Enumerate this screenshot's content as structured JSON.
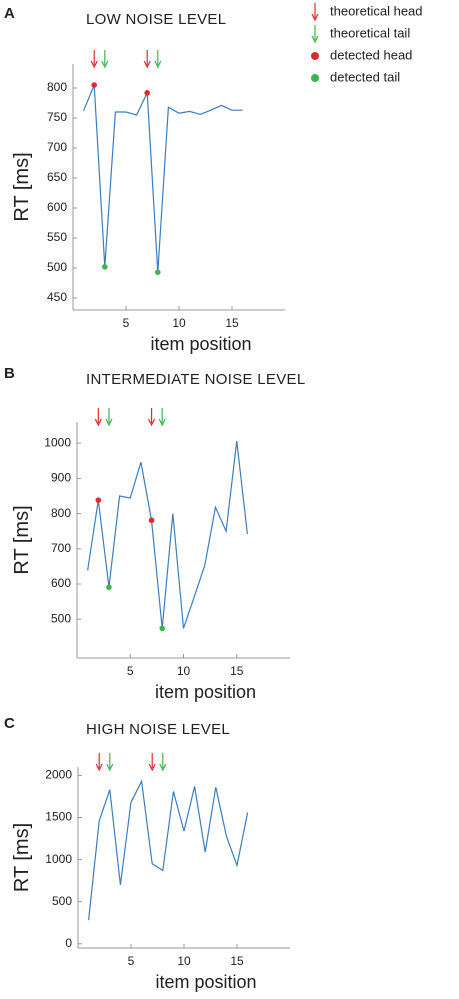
{
  "chart_data": [
    {
      "type": "line",
      "panel": "A",
      "title": "LOW NOISE LEVEL",
      "ylabel": "RT [ms]",
      "xlabel": "item position",
      "x": [
        1,
        2,
        3,
        4,
        5,
        6,
        7,
        8,
        9,
        10,
        11,
        12,
        13,
        14,
        15,
        16
      ],
      "series": [
        {
          "color": "#3a7ebf",
          "values": [
            762,
            805,
            502,
            760,
            760,
            755,
            792,
            493,
            768,
            758,
            761,
            756,
            763,
            771,
            763,
            763
          ]
        }
      ],
      "theoretical_head": [
        2,
        7
      ],
      "theoretical_tail": [
        3,
        8
      ],
      "detected_head": {
        "x": [
          2,
          7
        ],
        "values": [
          805,
          792
        ]
      },
      "detected_tail": {
        "x": [
          3,
          8
        ],
        "values": [
          502,
          493
        ]
      },
      "xlim": [
        0,
        20
      ],
      "xticks": [
        5,
        10,
        15
      ],
      "ylim": [
        430,
        840
      ],
      "yticks": [
        450,
        500,
        550,
        600,
        650,
        700,
        750,
        800
      ],
      "legend": [
        {
          "label": "theoretical head",
          "color": "#e0282e",
          "marker": "arrow"
        },
        {
          "label": "theoretical tail",
          "color": "#3cb44b",
          "marker": "arrow"
        },
        {
          "label": "detected head",
          "color": "#e0282e",
          "marker": "dot"
        },
        {
          "label": "detected tail",
          "color": "#3cb44b",
          "marker": "dot"
        }
      ]
    },
    {
      "type": "line",
      "panel": "B",
      "title": "INTERMEDIATE NOISE LEVEL",
      "ylabel": "RT [ms]",
      "xlabel": "item position",
      "x": [
        1,
        2,
        3,
        4,
        5,
        6,
        7,
        8,
        9,
        10,
        11,
        12,
        13,
        14,
        15,
        16
      ],
      "series": [
        {
          "color": "#3a7ebf",
          "values": [
            639,
            838,
            591,
            850,
            844,
            946,
            781,
            474,
            800,
            474,
            563,
            653,
            818,
            750,
            1006,
            742
          ]
        }
      ],
      "theoretical_head": [
        2,
        7
      ],
      "theoretical_tail": [
        3,
        8
      ],
      "detected_head": {
        "x": [
          2,
          7
        ],
        "values": [
          838,
          781
        ]
      },
      "detected_tail": {
        "x": [
          3,
          8
        ],
        "values": [
          591,
          474
        ]
      },
      "xlim": [
        0,
        20
      ],
      "xticks": [
        5,
        10,
        15
      ],
      "ylim": [
        390,
        1060
      ],
      "yticks": [
        500,
        600,
        700,
        800,
        900,
        1000
      ]
    },
    {
      "type": "line",
      "panel": "C",
      "title": "HIGH NOISE LEVEL",
      "ylabel": "RT [ms]",
      "xlabel": "item position",
      "x": [
        1,
        2,
        3,
        4,
        5,
        6,
        7,
        8,
        9,
        10,
        11,
        12,
        13,
        14,
        15,
        16
      ],
      "series": [
        {
          "color": "#3a7ebf",
          "values": [
            280,
            1460,
            1830,
            700,
            1680,
            1930,
            950,
            870,
            1810,
            1340,
            1870,
            1090,
            1860,
            1280,
            930,
            1560
          ]
        }
      ],
      "theoretical_head": [
        2,
        7
      ],
      "theoretical_tail": [
        3,
        8
      ],
      "xlim": [
        0,
        20
      ],
      "xticks": [
        5,
        10,
        15
      ],
      "ylim": [
        -50,
        2100
      ],
      "yticks": [
        0,
        500,
        1000,
        1500,
        2000
      ]
    }
  ]
}
